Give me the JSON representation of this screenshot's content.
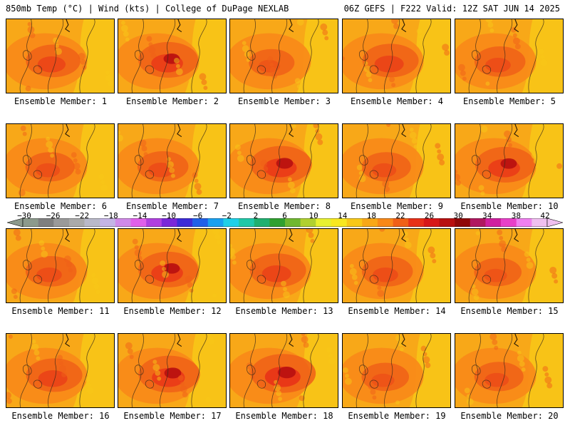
{
  "header": {
    "left_title": "850mb Temp (°C) | Wind (kts) | College of DuPage NEXLAB",
    "right_title": "06Z GEFS | F222 Valid: 12Z SAT JUN 14 2025"
  },
  "panels": [
    {
      "label": "Ensemble Member: 1",
      "hot": 0.55
    },
    {
      "label": "Ensemble Member: 2",
      "hot": 0.7
    },
    {
      "label": "Ensemble Member: 3",
      "hot": 0.3
    },
    {
      "label": "Ensemble Member: 4",
      "hot": 0.6
    },
    {
      "label": "Ensemble Member: 5",
      "hot": 0.45
    },
    {
      "label": "Ensemble Member: 6",
      "hot": 0.4
    },
    {
      "label": "Ensemble Member: 7",
      "hot": 0.45
    },
    {
      "label": "Ensemble Member: 8",
      "hot": 0.75
    },
    {
      "label": "Ensemble Member: 9",
      "hot": 0.4
    },
    {
      "label": "Ensemble Member: 10",
      "hot": 0.7
    },
    {
      "label": "Ensemble Member: 11",
      "hot": 0.45
    },
    {
      "label": "Ensemble Member: 12",
      "hot": 0.7
    },
    {
      "label": "Ensemble Member: 13",
      "hot": 0.6
    },
    {
      "label": "Ensemble Member: 14",
      "hot": 0.45
    },
    {
      "label": "Ensemble Member: 15",
      "hot": 0.35
    },
    {
      "label": "Ensemble Member: 16",
      "hot": 0.6
    },
    {
      "label": "Ensemble Member: 17",
      "hot": 0.75
    },
    {
      "label": "Ensemble Member: 18",
      "hot": 0.85
    },
    {
      "label": "Ensemble Member: 19",
      "hot": 0.35
    },
    {
      "label": "Ensemble Member: 20",
      "hot": 0.4
    }
  ],
  "colorbar": {
    "labels": [
      "−30",
      "−26",
      "−22",
      "−18",
      "−14",
      "−10",
      "−6",
      "−2",
      "2",
      "6",
      "10",
      "14",
      "18",
      "22",
      "26",
      "30",
      "34",
      "38",
      "42"
    ],
    "colors": [
      "#8c9a8c",
      "#7f7f7f",
      "#9a9a9a",
      "#aaaaaa",
      "#b9b9c9",
      "#c4b4e6",
      "#d08ae8",
      "#e060ea",
      "#b040e0",
      "#7a28d8",
      "#3c2cd8",
      "#2060e8",
      "#1aa0f0",
      "#20d0e8",
      "#20c8a8",
      "#20b070",
      "#30a030",
      "#70b830",
      "#b0d030",
      "#e8f030",
      "#f8e820",
      "#f8c818",
      "#f8a818",
      "#f88818",
      "#f06018",
      "#e83018",
      "#d81818",
      "#b81010",
      "#900808",
      "#b01860",
      "#d020a0",
      "#e840c8",
      "#f080f0",
      "#f0c0f0"
    ]
  }
}
